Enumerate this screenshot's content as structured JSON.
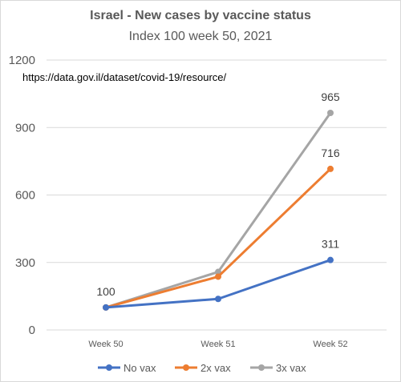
{
  "chart_data": {
    "type": "line",
    "title": "Israel - New cases by vaccine status",
    "subtitle": "Index 100 week 50, 2021",
    "annotation": "https://data.gov.il/dataset/covid-19/resource/",
    "categories": [
      "Week 50",
      "Week 51",
      "Week 52"
    ],
    "ylim": [
      0,
      1200
    ],
    "yticks": [
      0,
      300,
      600,
      900,
      1200
    ],
    "grid": true,
    "legend_position": "bottom",
    "series": [
      {
        "name": "No vax",
        "color": "#4472c4",
        "values": [
          100,
          138,
          311
        ]
      },
      {
        "name": "2x vax",
        "color": "#ed7d31",
        "values": [
          100,
          237,
          716
        ]
      },
      {
        "name": "3x vax",
        "color": "#a5a5a5",
        "values": [
          100,
          258,
          965
        ]
      }
    ],
    "data_labels": [
      {
        "series": 0,
        "index": 0,
        "text": "100"
      },
      {
        "series": 2,
        "index": 2,
        "text": "965"
      },
      {
        "series": 1,
        "index": 2,
        "text": "716"
      },
      {
        "series": 0,
        "index": 2,
        "text": "311"
      }
    ]
  }
}
